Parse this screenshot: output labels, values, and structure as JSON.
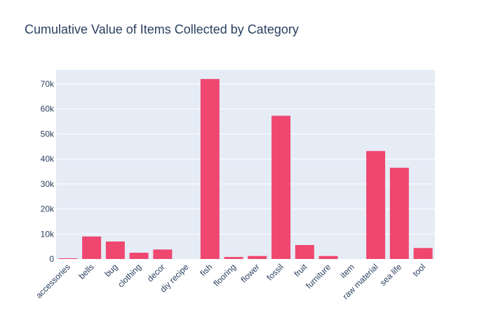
{
  "chart_data": {
    "type": "bar",
    "title": "Cumulative Value of Items Collected by Category",
    "xlabel": "",
    "ylabel": "",
    "categories": [
      "accessories",
      "bells",
      "bug",
      "clothing",
      "decor",
      "diy recipe",
      "fish",
      "flooring",
      "flower",
      "fossil",
      "fruit",
      "furniture",
      "item",
      "raw material",
      "sea life",
      "tool"
    ],
    "values": [
      300,
      9000,
      7000,
      2500,
      3800,
      0,
      72000,
      800,
      1200,
      57300,
      5600,
      1200,
      0,
      43200,
      36500,
      4400
    ],
    "ylim": [
      0,
      75600
    ],
    "yticks": [
      0,
      10000,
      20000,
      30000,
      40000,
      50000,
      60000,
      70000
    ],
    "ytick_labels": [
      "0",
      "10k",
      "20k",
      "30k",
      "40k",
      "50k",
      "60k",
      "70k"
    ],
    "grid": true,
    "colors": {
      "bar": "#EF476F",
      "plot_bg": "#E5ECF6",
      "grid": "#ffffff",
      "text": "#2a3f5f"
    }
  }
}
